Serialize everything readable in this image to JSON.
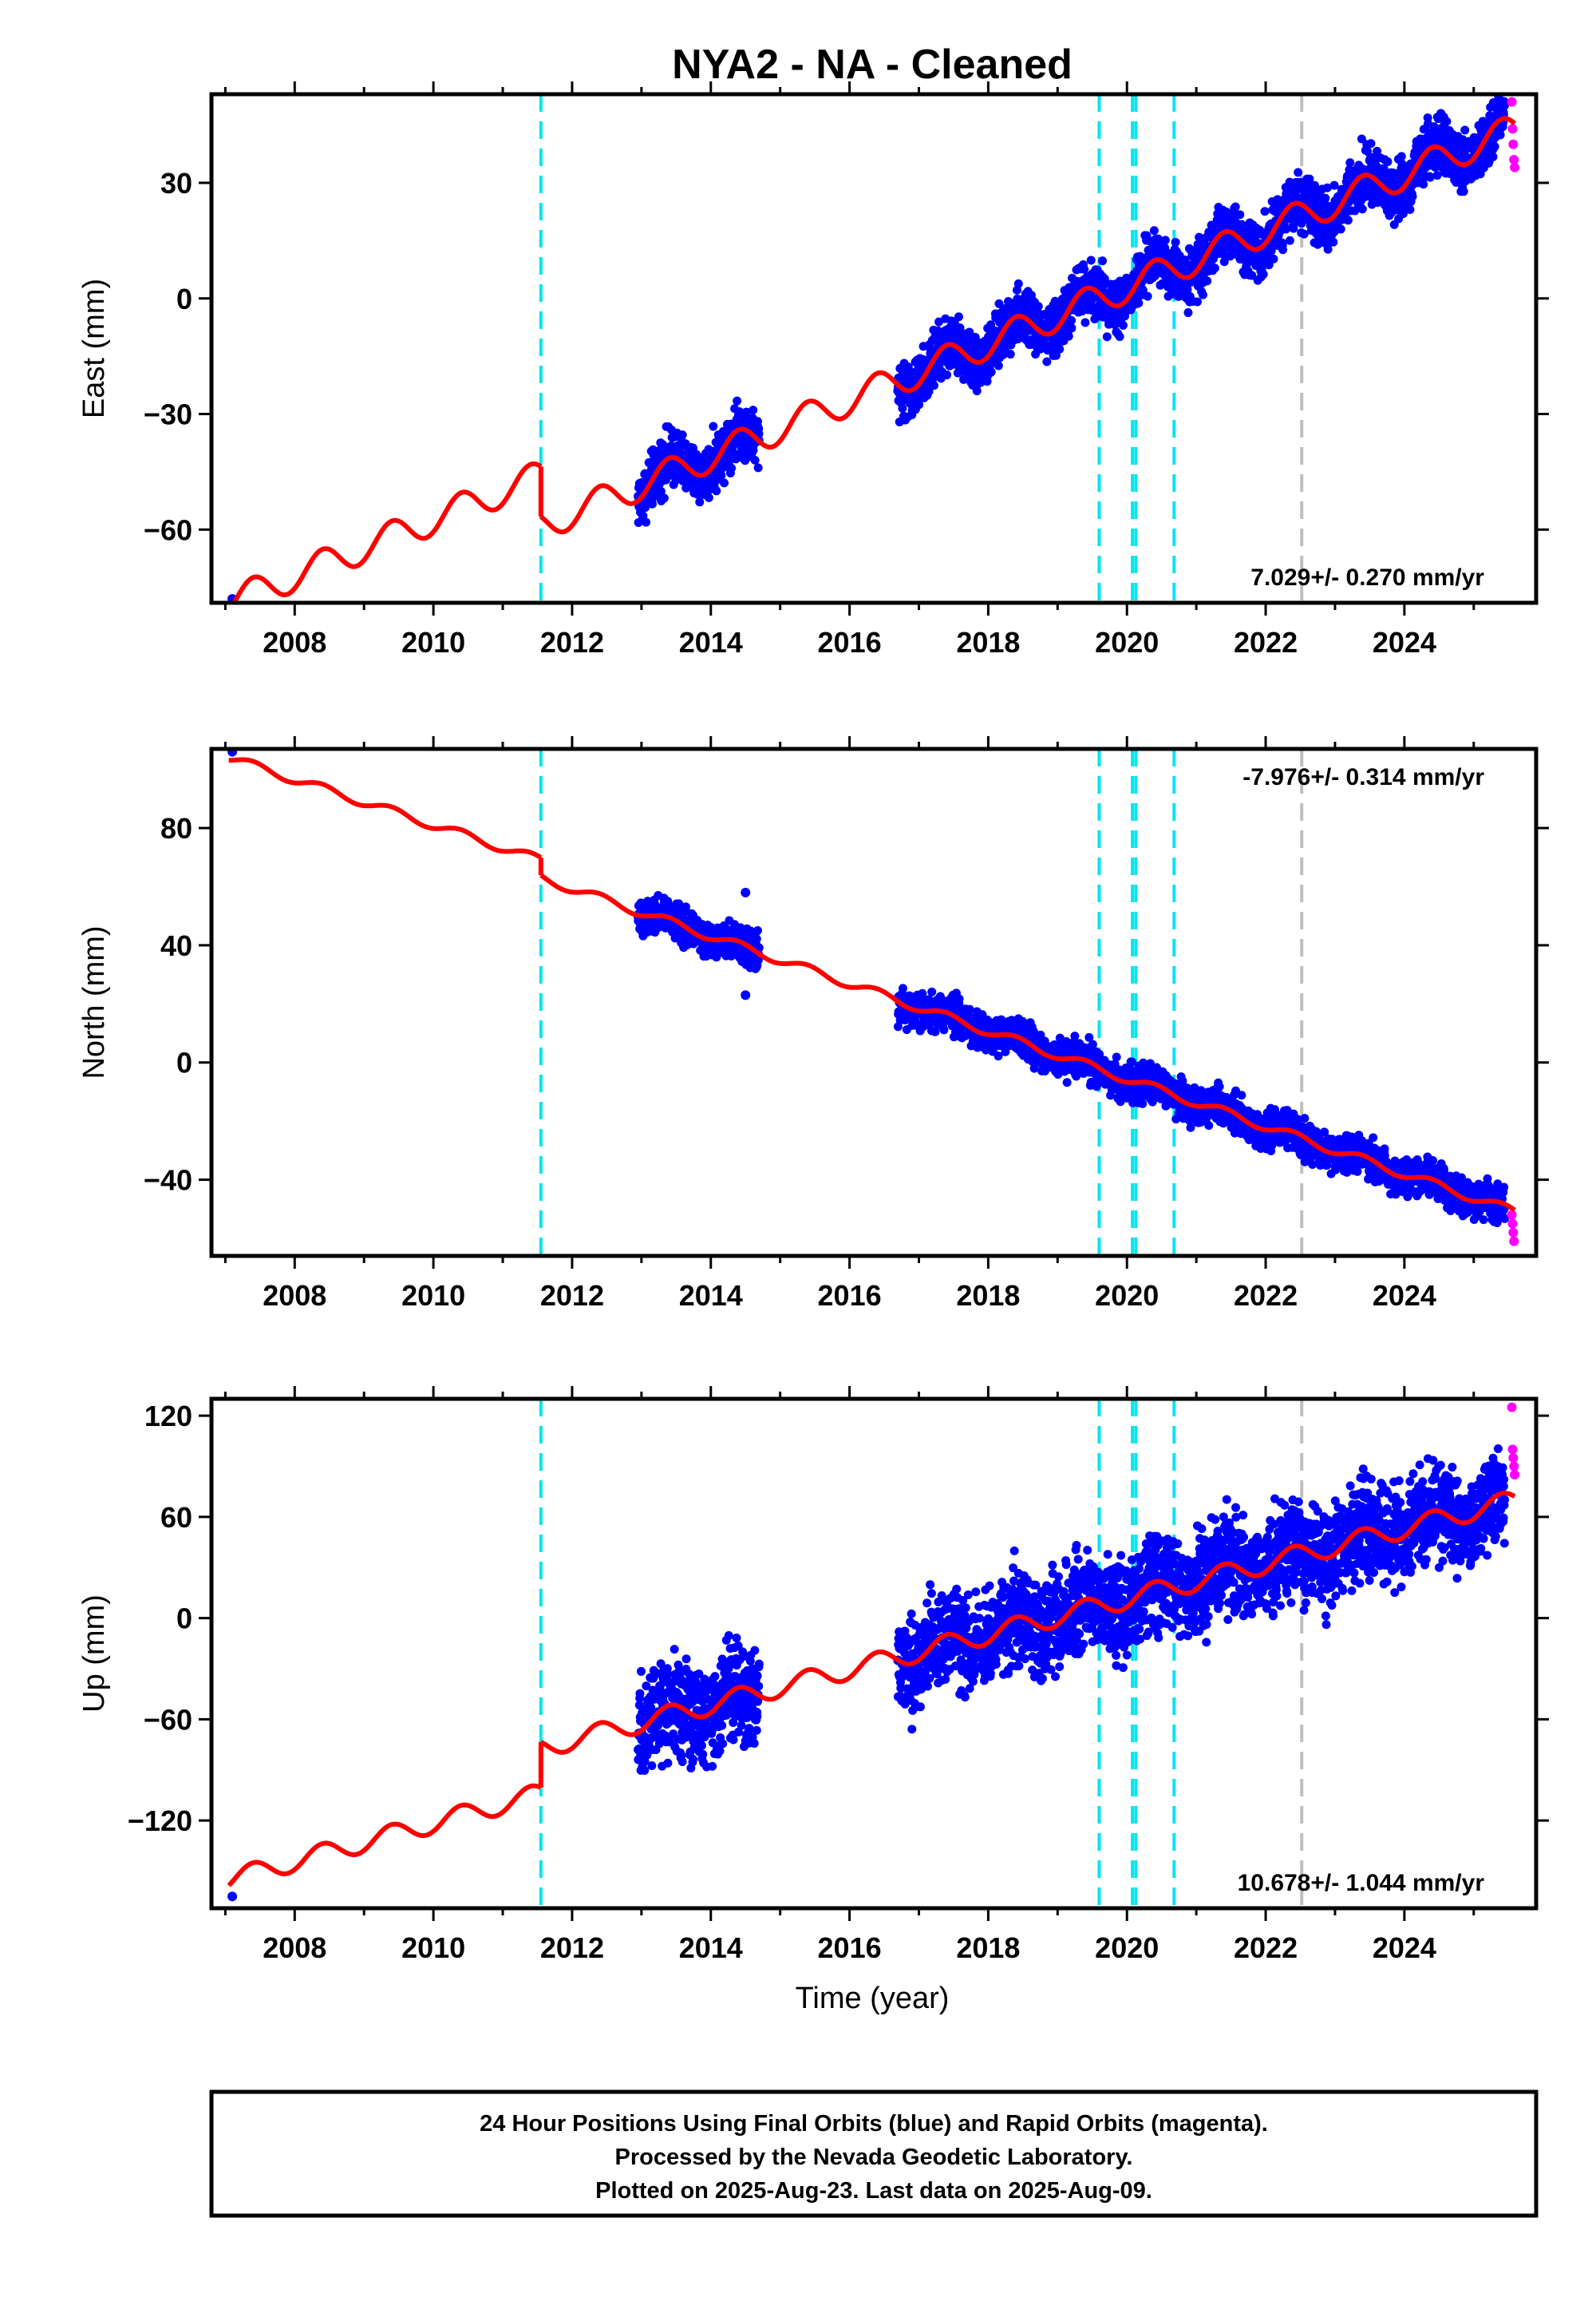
{
  "title": "NYA2  - NA - Cleaned",
  "colors": {
    "final": "#0000ff",
    "rapid": "#ff00ff",
    "model": "#ff0000",
    "event": "#00e5ee",
    "event_gray": "#bfbfbf"
  },
  "x_axis": {
    "label": "Time (year)",
    "range": [
      2006.8,
      2025.9
    ],
    "ticks": [
      "2008",
      "2010",
      "2012",
      "2014",
      "2016",
      "2018",
      "2020",
      "2022",
      "2024"
    ]
  },
  "event_lines": {
    "cyan": [
      2011.55,
      2019.6,
      2020.08,
      2020.13,
      2020.68
    ],
    "gray": [
      2022.52
    ]
  },
  "chart_data": [
    {
      "type": "scatter",
      "component": "east",
      "ylabel": "East (mm)",
      "ylim": [
        -79,
        53
      ],
      "yticks": [
        "30",
        "0",
        "-30",
        "-60"
      ],
      "rate": "7.029+/- 0.270 mm/yr",
      "rate_position": "bottom-right",
      "model": {
        "segments": [
          {
            "x0": 2007.05,
            "x1": 2011.55,
            "y0": -79,
            "y1": -46
          },
          {
            "x0": 2011.55,
            "x1": 2025.6,
            "y0": -59,
            "y1": 44
          }
        ],
        "annual_amplitude_mm": 4
      },
      "series": [
        {
          "name": "Final Orbits (blue)",
          "points": [
            [
              2007.1,
              -78
            ],
            [
              2013.0,
              -49
            ],
            [
              2013.5,
              -43
            ],
            [
              2014.0,
              -47
            ],
            [
              2014.5,
              -38
            ],
            [
              2016.7,
              -24
            ],
            [
              2017.5,
              -17
            ],
            [
              2018.5,
              -10
            ],
            [
              2019.5,
              -3
            ],
            [
              2020.5,
              8
            ],
            [
              2021.5,
              14
            ],
            [
              2022.5,
              22
            ],
            [
              2023.5,
              30
            ],
            [
              2024.5,
              38
            ],
            [
              2025.4,
              45
            ]
          ]
        },
        {
          "name": "Rapid Orbits (magenta)",
          "points": [
            [
              2025.55,
              51
            ],
            [
              2025.56,
              44
            ],
            [
              2025.57,
              40
            ],
            [
              2025.58,
              36
            ],
            [
              2025.59,
              34
            ]
          ]
        }
      ]
    },
    {
      "type": "scatter",
      "component": "north",
      "ylabel": "North (mm)",
      "ylim": [
        -66,
        107
      ],
      "yticks": [
        "80",
        "40",
        "0",
        "-40"
      ],
      "rate": "-7.976+/- 0.314 mm/yr",
      "rate_position": "top-right",
      "model": {
        "segments": [
          {
            "x0": 2007.05,
            "x1": 2011.55,
            "y0": 104,
            "y1": 69
          },
          {
            "x0": 2011.55,
            "x1": 2025.6,
            "y0": 63,
            "y1": -51
          }
        ],
        "annual_amplitude_mm": 1.5
      },
      "series": [
        {
          "name": "Final Orbits (blue)",
          "points": [
            [
              2007.1,
              106
            ],
            [
              2013.0,
              53
            ],
            [
              2014.0,
              46
            ],
            [
              2014.6,
              37
            ],
            [
              2014.5,
              58
            ],
            [
              2014.5,
              23
            ],
            [
              2016.7,
              22
            ],
            [
              2018.0,
              10
            ],
            [
              2019.0,
              3
            ],
            [
              2020.0,
              -4
            ],
            [
              2021.0,
              -13
            ],
            [
              2022.0,
              -21
            ],
            [
              2022.5,
              -26
            ],
            [
              2023.5,
              -33
            ],
            [
              2024.5,
              -44
            ],
            [
              2025.4,
              -50
            ]
          ]
        },
        {
          "name": "Rapid Orbits (magenta)",
          "points": [
            [
              2025.55,
              -52
            ],
            [
              2025.56,
              -55
            ],
            [
              2025.57,
              -58
            ],
            [
              2025.58,
              -61
            ]
          ]
        }
      ]
    },
    {
      "type": "scatter",
      "component": "up",
      "ylabel": "Up (mm)",
      "ylim": [
        -172,
        130
      ],
      "yticks": [
        "120",
        "60",
        "0",
        "-60",
        "-120"
      ],
      "rate": "10.678+/- 1.044 mm/yr",
      "rate_position": "bottom-right",
      "model": {
        "segments": [
          {
            "x0": 2007.05,
            "x1": 2011.55,
            "y0": -155,
            "y1": -104
          },
          {
            "x0": 2011.55,
            "x1": 2025.6,
            "y0": -77,
            "y1": 70
          }
        ],
        "annual_amplitude_mm": 6
      },
      "series": [
        {
          "name": "Final Orbits (blue)",
          "points": [
            [
              2007.1,
              -165
            ],
            [
              2013.0,
              -68
            ],
            [
              2014.0,
              -55
            ],
            [
              2014.6,
              -38
            ],
            [
              2016.7,
              -25
            ],
            [
              2018.0,
              -18
            ],
            [
              2019.0,
              -5
            ],
            [
              2020.0,
              2
            ],
            [
              2021.0,
              12
            ],
            [
              2022.0,
              22
            ],
            [
              2022.6,
              42
            ],
            [
              2023.5,
              46
            ],
            [
              2024.5,
              55
            ],
            [
              2025.4,
              68
            ]
          ]
        },
        {
          "name": "Rapid Orbits (magenta)",
          "points": [
            [
              2025.55,
              125
            ],
            [
              2025.56,
              100
            ],
            [
              2025.57,
              95
            ],
            [
              2025.58,
              90
            ],
            [
              2025.59,
              85
            ]
          ]
        }
      ]
    }
  ],
  "footer": {
    "line1": "24 Hour Positions Using Final Orbits (blue) and Rapid Orbits (magenta).",
    "line2": "Processed by the Nevada Geodetic Laboratory.",
    "line3": "Plotted on 2025-Aug-23. Last data on 2025-Aug-09."
  }
}
